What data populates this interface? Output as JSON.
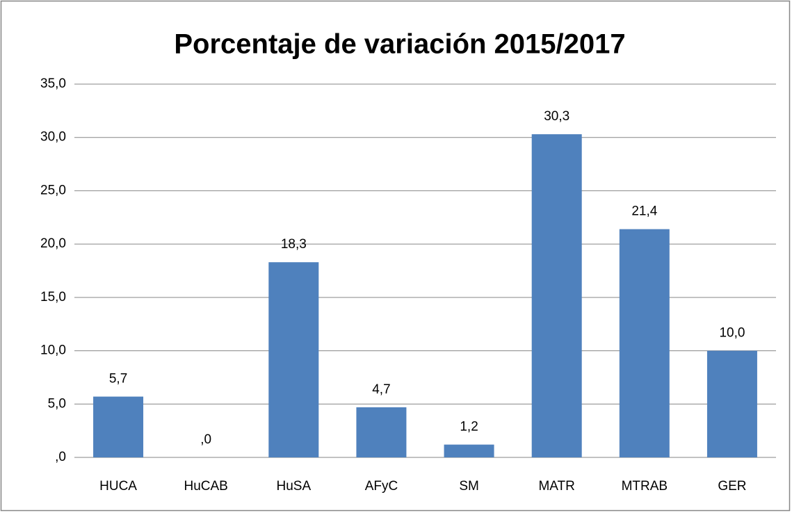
{
  "chart_data": {
    "type": "bar",
    "title": "Porcentaje de variación 2015/2017",
    "categories": [
      "HUCA",
      "HuCAB",
      "HuSA",
      "AFyC",
      "SM",
      "MATR",
      "MTRAB",
      "GER"
    ],
    "values": [
      5.7,
      0,
      18.3,
      4.7,
      1.2,
      30.3,
      21.4,
      10.0
    ],
    "value_labels": [
      "5,7",
      ",0",
      "18,3",
      "4,7",
      "1,2",
      "30,3",
      "21,4",
      "10,0"
    ],
    "color": "#4f81bd",
    "ylim": [
      0,
      35
    ],
    "yticks": [
      {
        "value": 0,
        "label": ",0"
      },
      {
        "value": 5,
        "label": "5,0"
      },
      {
        "value": 10,
        "label": "10,0"
      },
      {
        "value": 15,
        "label": "15,0"
      },
      {
        "value": 20,
        "label": "20,0"
      },
      {
        "value": 25,
        "label": "25,0"
      },
      {
        "value": 30,
        "label": "30,0"
      },
      {
        "value": 35,
        "label": "35,0"
      }
    ],
    "grid": true
  }
}
